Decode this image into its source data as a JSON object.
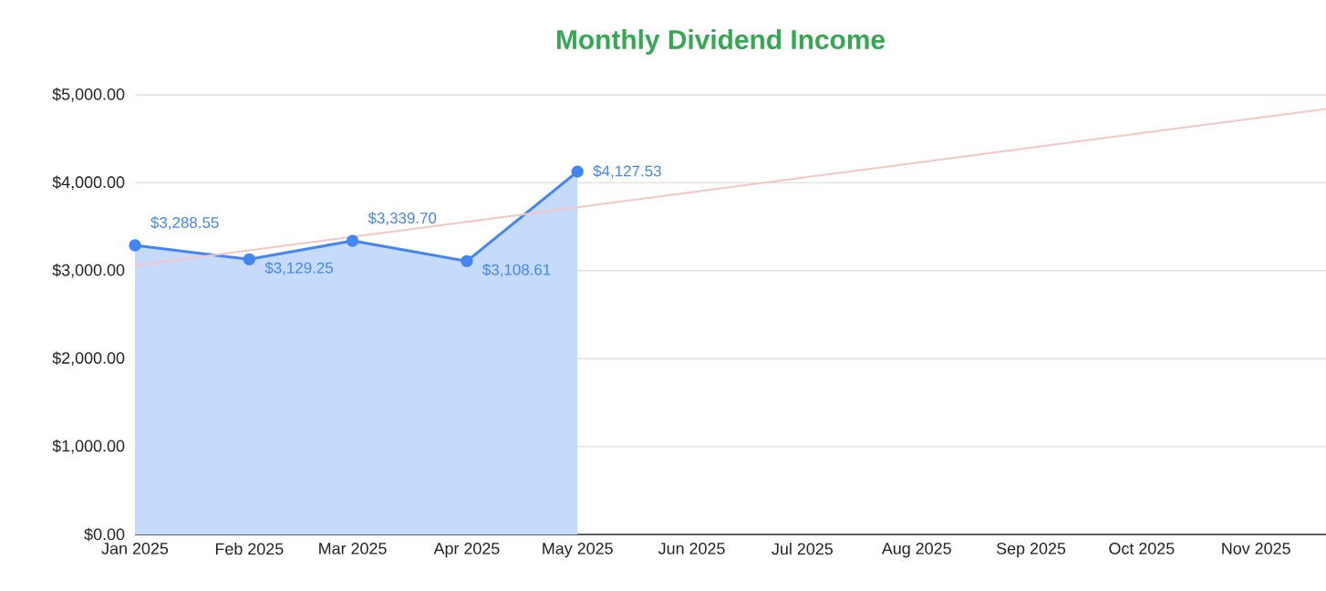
{
  "chart_data": {
    "type": "area",
    "title": "Monthly Dividend Income",
    "x": [
      "2025-01-01",
      "2025-02-01",
      "2025-03-01",
      "2025-04-01",
      "2025-05-01"
    ],
    "series": [
      {
        "color": "#4285f4",
        "values": [
          3288.55,
          3129.25,
          3339.7,
          3108.61,
          4127.53
        ],
        "value_labels": [
          "$3,288.55",
          "$3,129.25",
          "$3,339.70",
          "$3,108.61",
          "$4,127.53"
        ]
      },
      {
        "type": "line",
        "color": "#f4c7c3",
        "marker": "none",
        "x": [
          "2025-01-01",
          "2025-11-20"
        ],
        "values": [
          3060,
          4840
        ]
      }
    ],
    "marker": "circle",
    "grid": "y",
    "xlim": [
      "2025-01-01",
      "2025-11-20"
    ],
    "xticks": [
      {
        "value": "2025-01-01",
        "label": "Jan 2025"
      },
      {
        "value": "2025-02-01",
        "label": "Feb 2025"
      },
      {
        "value": "2025-03-01",
        "label": "Mar 2025"
      },
      {
        "value": "2025-04-01",
        "label": "Apr 2025"
      },
      {
        "value": "2025-05-01",
        "label": "May 2025"
      },
      {
        "value": "2025-06-01",
        "label": "Jun 2025"
      },
      {
        "value": "2025-07-01",
        "label": "Jul 2025"
      },
      {
        "value": "2025-08-01",
        "label": "Aug 2025"
      },
      {
        "value": "2025-09-01",
        "label": "Sep 2025"
      },
      {
        "value": "2025-10-01",
        "label": "Oct 2025"
      },
      {
        "value": "2025-11-01",
        "label": "Nov 2025"
      }
    ],
    "ylim": [
      0,
      5000
    ],
    "yticks": [
      {
        "value": 0,
        "label": "$0.00"
      },
      {
        "value": 1000,
        "label": "$1,000.00"
      },
      {
        "value": 2000,
        "label": "$2,000.00"
      },
      {
        "value": 3000,
        "label": "$3,000.00"
      },
      {
        "value": 4000,
        "label": "$4,000.00"
      },
      {
        "value": 5000,
        "label": "$5,000.00"
      }
    ]
  }
}
